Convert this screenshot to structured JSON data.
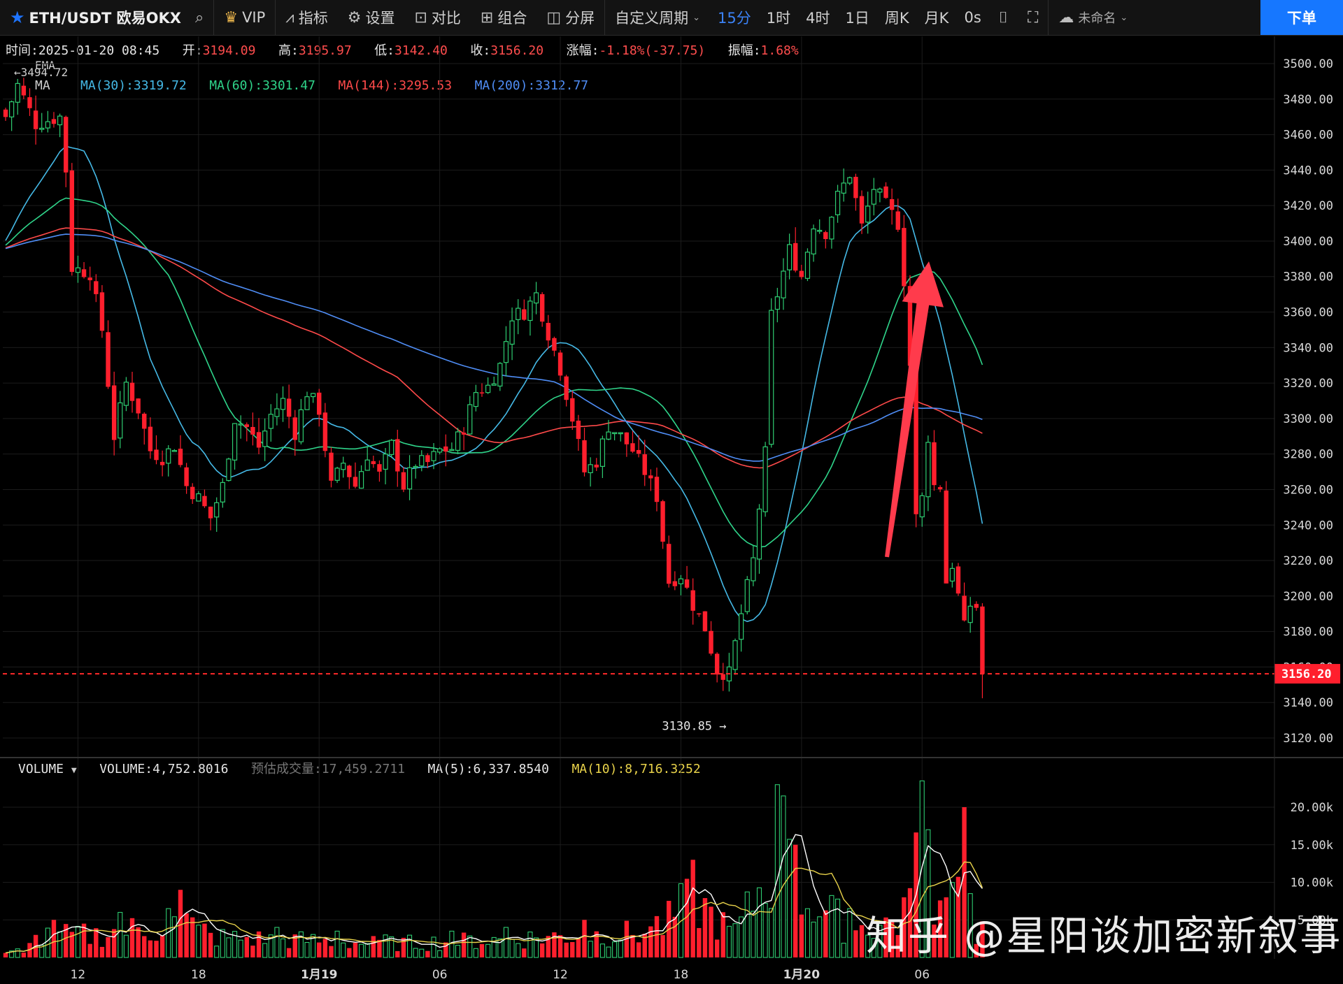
{
  "toolbar": {
    "symbol": "ETH/USDT 欧易OKX",
    "vip": "VIP",
    "indicators": "指标",
    "settings": "设置",
    "compare": "对比",
    "combo": "组合",
    "split": "分屏",
    "custom_period": "自定义周期",
    "periods": [
      "15分",
      "1时",
      "4时",
      "1日",
      "周K",
      "月K",
      "0s"
    ],
    "active_period": "15分",
    "layout_name": "未命名",
    "order_button": "下单"
  },
  "info_bar": {
    "time_label": "时间:",
    "time": "2025-01-20 08:45",
    "open_label": "开:",
    "open": "3194.09",
    "high_label": "高:",
    "high": "3195.97",
    "low_label": "低:",
    "low": "3142.40",
    "close_label": "收:",
    "close": "3156.20",
    "change_label": "涨幅:",
    "change": "-1.18%(-37.75)",
    "amp_label": "振幅:",
    "amp": "1.68%"
  },
  "ma_legend": {
    "ema_label": "EMA",
    "ma_label": "MA",
    "high_marker": "3494.72",
    "ma30": "MA(30):3319.72",
    "ma60": "MA(60):3301.47",
    "ma144": "MA(144):3295.53",
    "ma200": "MA(200):3312.77"
  },
  "volume_legend": {
    "title": "VOLUME",
    "volume": "VOLUME:4,752.8016",
    "estimated": "预估成交量:17,459.2711",
    "ma5": "MA(5):6,337.8540",
    "ma10": "MA(10):8,716.3252"
  },
  "low_marker": "3130.85",
  "current_price_tag": "3156.20",
  "watermark": "知乎 @星阳谈加密新叙事",
  "colors": {
    "up": "#2ecc71",
    "down": "#ff1f2d",
    "ma30": "#45b9e6",
    "ma60": "#2fd48a",
    "ma144": "#ff4a4a",
    "ma200": "#4f8df5",
    "vol_ma5": "#ffffff",
    "vol_ma10": "#e8d24a",
    "arrow": "#ff3b4c"
  },
  "chart_data": {
    "type": "candlestick",
    "interval": "15m",
    "symbol": "ETH/USDT",
    "y_ticks": [
      "3500.00",
      "3480.00",
      "3460.00",
      "3440.00",
      "3420.00",
      "3400.00",
      "3380.00",
      "3360.00",
      "3340.00",
      "3320.00",
      "3300.00",
      "3280.00",
      "3260.00",
      "3240.00",
      "3220.00",
      "3200.00",
      "3180.00",
      "3160.00",
      "3140.00",
      "3120.00"
    ],
    "ylim": [
      3112,
      3506
    ],
    "x_ticks": [
      "12",
      "18",
      "1月19",
      "06",
      "12",
      "18",
      "1月20",
      "06"
    ],
    "x_tick_bar_index": [
      12,
      32,
      52,
      72,
      92,
      112,
      132,
      152
    ],
    "bar_count": 163,
    "anchors": [
      [
        0,
        3470
      ],
      [
        2,
        3488
      ],
      [
        5,
        3466
      ],
      [
        9,
        3470
      ],
      [
        10,
        3440
      ],
      [
        11,
        3385
      ],
      [
        14,
        3382
      ],
      [
        16,
        3350
      ],
      [
        18,
        3290
      ],
      [
        20,
        3320
      ],
      [
        22,
        3305
      ],
      [
        24,
        3282
      ],
      [
        26,
        3278
      ],
      [
        28,
        3285
      ],
      [
        30,
        3262
      ],
      [
        32,
        3255
      ],
      [
        34,
        3244
      ],
      [
        36,
        3262
      ],
      [
        38,
        3300
      ],
      [
        40,
        3295
      ],
      [
        42,
        3284
      ],
      [
        44,
        3302
      ],
      [
        46,
        3310
      ],
      [
        48,
        3292
      ],
      [
        50,
        3315
      ],
      [
        52,
        3305
      ],
      [
        54,
        3262
      ],
      [
        56,
        3275
      ],
      [
        58,
        3262
      ],
      [
        60,
        3280
      ],
      [
        62,
        3268
      ],
      [
        64,
        3285
      ],
      [
        66,
        3262
      ],
      [
        68,
        3275
      ],
      [
        70,
        3275
      ],
      [
        72,
        3282
      ],
      [
        74,
        3283
      ],
      [
        76,
        3295
      ],
      [
        78,
        3315
      ],
      [
        80,
        3318
      ],
      [
        82,
        3330
      ],
      [
        84,
        3358
      ],
      [
        86,
        3360
      ],
      [
        88,
        3370
      ],
      [
        90,
        3348
      ],
      [
        92,
        3328
      ],
      [
        94,
        3300
      ],
      [
        96,
        3270
      ],
      [
        98,
        3276
      ],
      [
        100,
        3296
      ],
      [
        102,
        3290
      ],
      [
        104,
        3282
      ],
      [
        106,
        3270
      ],
      [
        108,
        3256
      ],
      [
        110,
        3208
      ],
      [
        112,
        3212
      ],
      [
        114,
        3195
      ],
      [
        116,
        3182
      ],
      [
        118,
        3158
      ],
      [
        120,
        3156
      ],
      [
        122,
        3190
      ],
      [
        124,
        3220
      ],
      [
        126,
        3280
      ],
      [
        127,
        3358
      ],
      [
        128,
        3370
      ],
      [
        130,
        3395
      ],
      [
        132,
        3380
      ],
      [
        134,
        3410
      ],
      [
        136,
        3405
      ],
      [
        138,
        3425
      ],
      [
        140,
        3438
      ],
      [
        142,
        3408
      ],
      [
        144,
        3430
      ],
      [
        146,
        3420
      ],
      [
        148,
        3410
      ],
      [
        149,
        3378
      ],
      [
        150,
        3330
      ],
      [
        151,
        3244
      ],
      [
        152,
        3255
      ],
      [
        153,
        3290
      ],
      [
        154,
        3262
      ],
      [
        155,
        3262
      ],
      [
        156,
        3208
      ],
      [
        157,
        3218
      ],
      [
        158,
        3200
      ],
      [
        159,
        3182
      ],
      [
        160,
        3195
      ],
      [
        161,
        3194
      ],
      [
        162,
        3156
      ]
    ],
    "last_candle": {
      "open": 3194.09,
      "high": 3195.97,
      "low": 3142.4,
      "close": 3156.2
    },
    "period_high": 3494.72,
    "period_low": 3130.85,
    "current_price": 3156.2,
    "moving_averages": [
      {
        "name": "MA(30)",
        "last": 3319.72
      },
      {
        "name": "MA(60)",
        "last": 3301.47
      },
      {
        "name": "MA(144)",
        "last": 3295.53
      },
      {
        "name": "MA(200)",
        "last": 3312.77
      }
    ],
    "volume": {
      "y_ticks": [
        "20.00k",
        "15.00k",
        "10.00k",
        "5.00k"
      ],
      "ylim": [
        0,
        24000
      ],
      "spikes": [
        [
          0,
          600
        ],
        [
          5,
          3000
        ],
        [
          8,
          5000
        ],
        [
          13,
          4500
        ],
        [
          19,
          6000
        ],
        [
          27,
          6500
        ],
        [
          29,
          9000
        ],
        [
          33,
          4500
        ],
        [
          45,
          4000
        ],
        [
          55,
          3500
        ],
        [
          63,
          3000
        ],
        [
          74,
          3500
        ],
        [
          83,
          4000
        ],
        [
          96,
          5000
        ],
        [
          108,
          5500
        ],
        [
          114,
          13000
        ],
        [
          121,
          4500
        ],
        [
          128,
          23000
        ],
        [
          129,
          21500
        ],
        [
          131,
          15000
        ],
        [
          140,
          6500
        ],
        [
          149,
          8000
        ],
        [
          152,
          23500
        ],
        [
          153,
          17000
        ],
        [
          156,
          8000
        ],
        [
          159,
          20000
        ],
        [
          160,
          8500
        ],
        [
          162,
          4800
        ]
      ],
      "last_volume": 4752.8016,
      "ma5_last": 6337.854,
      "ma10_last": 8716.3252
    }
  }
}
